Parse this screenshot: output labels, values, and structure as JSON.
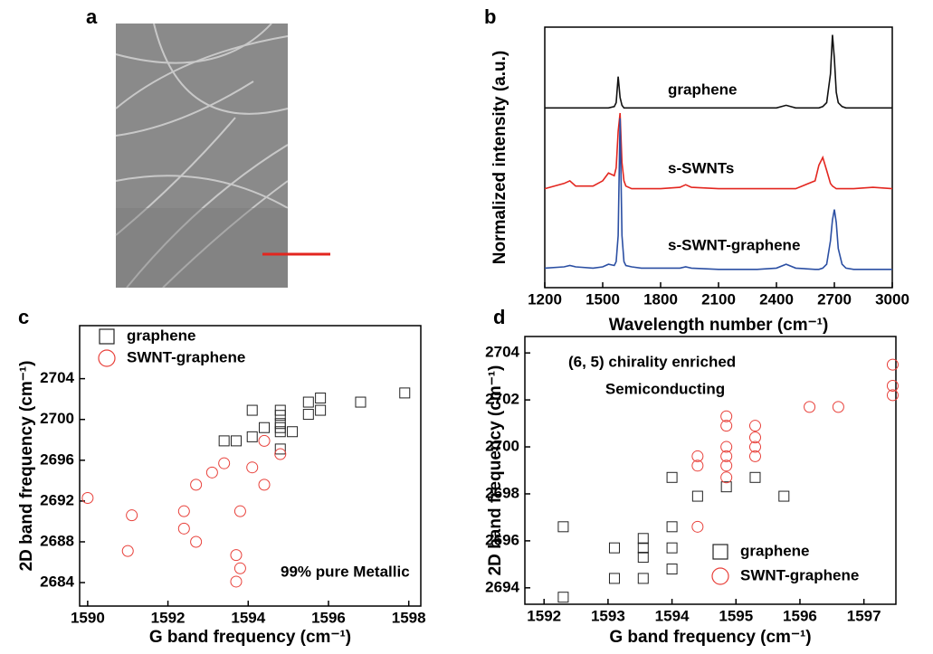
{
  "chart_data": [
    {
      "type": "image",
      "label": "a"
    },
    {
      "type": "line",
      "label": "b",
      "y_label": "Normalized intensity (a.u.)",
      "x_label": "Wavelength number (cm⁻¹)",
      "xlim": [
        1200,
        3000
      ],
      "xticks": [
        1200,
        1500,
        1800,
        2100,
        2400,
        2700,
        3000
      ],
      "ylim": [
        0,
        10
      ],
      "x": [
        1200,
        1300,
        1330,
        1360,
        1450,
        1500,
        1530,
        1560,
        1570,
        1580,
        1590,
        1600,
        1610,
        1620,
        1650,
        1700,
        1800,
        1900,
        1930,
        1960,
        2100,
        2300,
        2400,
        2450,
        2500,
        2600,
        2620,
        2640,
        2660,
        2680,
        2690,
        2700,
        2710,
        2720,
        2740,
        2760,
        2800,
        2900,
        3000
      ],
      "series": [
        {
          "name": "graphene",
          "color": "#111111",
          "values": [
            6.9,
            6.9,
            6.9,
            6.9,
            6.9,
            6.9,
            6.9,
            6.95,
            7.1,
            8.1,
            7.3,
            7.0,
            6.9,
            6.9,
            6.9,
            6.9,
            6.9,
            6.9,
            6.9,
            6.9,
            6.9,
            6.9,
            6.9,
            7.0,
            6.9,
            6.9,
            6.9,
            6.95,
            7.1,
            8.2,
            9.7,
            8.8,
            7.5,
            7.1,
            6.95,
            6.9,
            6.9,
            6.9,
            6.9
          ]
        },
        {
          "name": "s-SWNTs",
          "color": "#e3261f",
          "values": [
            3.8,
            4.0,
            4.1,
            3.9,
            3.9,
            4.1,
            4.4,
            4.3,
            4.6,
            6.0,
            6.7,
            4.8,
            4.1,
            3.9,
            3.8,
            3.8,
            3.8,
            3.85,
            3.95,
            3.85,
            3.8,
            3.8,
            3.8,
            3.8,
            3.8,
            4.1,
            4.7,
            5.0,
            4.5,
            4.0,
            3.9,
            3.85,
            3.8,
            3.8,
            3.8,
            3.8,
            3.8,
            3.85,
            3.8
          ]
        },
        {
          "name": "s-SWNT-graphene",
          "color": "#2b4fa3",
          "values": [
            0.75,
            0.8,
            0.85,
            0.8,
            0.75,
            0.8,
            0.9,
            0.85,
            1.0,
            2.0,
            6.5,
            2.0,
            1.0,
            0.85,
            0.8,
            0.75,
            0.75,
            0.75,
            0.8,
            0.75,
            0.7,
            0.7,
            0.75,
            0.9,
            0.75,
            0.7,
            0.7,
            0.75,
            0.9,
            1.8,
            2.6,
            3.0,
            2.5,
            1.5,
            0.9,
            0.75,
            0.7,
            0.7,
            0.7
          ]
        }
      ]
    },
    {
      "type": "scatter",
      "label": "c",
      "y_label": "2D band frequency (cm⁻¹)",
      "x_label": "G band frequency (cm⁻¹)",
      "annotations": [
        "99% pure Metallic"
      ],
      "xlim": [
        1589.8,
        1598.3
      ],
      "xticks": [
        1590,
        1592,
        1594,
        1596,
        1598
      ],
      "ylim": [
        2681.7,
        2709.2
      ],
      "yticks": [
        2684,
        2688,
        2692,
        2696,
        2700,
        2704
      ],
      "legend": "upper left",
      "series": [
        {
          "name": "graphene",
          "color": "#222222",
          "marker": "square",
          "x": [
            1593.4,
            1593.7,
            1594.1,
            1594.1,
            1594.4,
            1594.8,
            1594.8,
            1594.8,
            1594.8,
            1594.8,
            1594.8,
            1595.1,
            1595.5,
            1595.5,
            1595.8,
            1595.8,
            1596.8,
            1597.9
          ],
          "values": [
            2697.9,
            2697.9,
            2698.3,
            2700.9,
            2699.2,
            2700.9,
            2700.4,
            2699.6,
            2699.2,
            2698.8,
            2697.1,
            2698.8,
            2701.7,
            2700.5,
            2702.1,
            2700.9,
            2701.7,
            2702.6
          ]
        },
        {
          "name": "SWNT-graphene",
          "color": "#e8403a",
          "marker": "circle",
          "x": [
            1590.0,
            1591.1,
            1591.0,
            1592.4,
            1592.4,
            1592.7,
            1592.7,
            1593.1,
            1593.7,
            1593.7,
            1593.4,
            1593.8,
            1593.8,
            1594.1,
            1594.4,
            1594.4,
            1594.8
          ],
          "values": [
            2692.3,
            2690.6,
            2687.1,
            2691.0,
            2689.3,
            2693.6,
            2688.0,
            2694.8,
            2686.7,
            2684.1,
            2695.7,
            2691.0,
            2685.4,
            2695.3,
            2697.9,
            2693.6,
            2696.6
          ]
        }
      ]
    },
    {
      "type": "scatter",
      "label": "d",
      "y_label": "2D band frequency (cm⁻¹)",
      "x_label": "G band frequency (cm⁻¹)",
      "annotations": [
        "(6, 5) chirality enriched",
        "Semiconducting"
      ],
      "xlim": [
        1591.7,
        1597.5
      ],
      "xticks": [
        1592,
        1593,
        1594,
        1595,
        1596,
        1597
      ],
      "ylim": [
        2693.3,
        2704.7
      ],
      "yticks": [
        2694,
        2696,
        2698,
        2700,
        2702,
        2704
      ],
      "legend": "lower right",
      "series": [
        {
          "name": "graphene",
          "color": "#222222",
          "marker": "square",
          "x": [
            1592.3,
            1592.3,
            1593.1,
            1593.1,
            1593.55,
            1593.55,
            1593.55,
            1593.55,
            1594.0,
            1594.0,
            1594.0,
            1594.0,
            1594.4,
            1594.85,
            1595.3,
            1595.75
          ],
          "values": [
            2696.6,
            2693.6,
            2695.7,
            2694.4,
            2696.1,
            2695.7,
            2695.3,
            2694.4,
            2698.7,
            2696.6,
            2695.7,
            2694.8,
            2697.9,
            2698.3,
            2698.7,
            2697.9
          ]
        },
        {
          "name": "SWNT-graphene",
          "color": "#e8403a",
          "marker": "circle",
          "x": [
            1594.4,
            1594.4,
            1594.4,
            1594.85,
            1594.85,
            1594.85,
            1594.85,
            1594.85,
            1594.85,
            1595.3,
            1595.3,
            1595.3,
            1595.3,
            1596.15,
            1596.6,
            1597.45,
            1597.45,
            1597.45
          ],
          "values": [
            2699.6,
            2699.2,
            2696.6,
            2701.3,
            2700.9,
            2700.0,
            2699.6,
            2699.2,
            2698.7,
            2700.9,
            2700.4,
            2700.0,
            2699.6,
            2701.7,
            2701.7,
            2703.5,
            2702.6,
            2702.2
          ]
        }
      ]
    }
  ]
}
